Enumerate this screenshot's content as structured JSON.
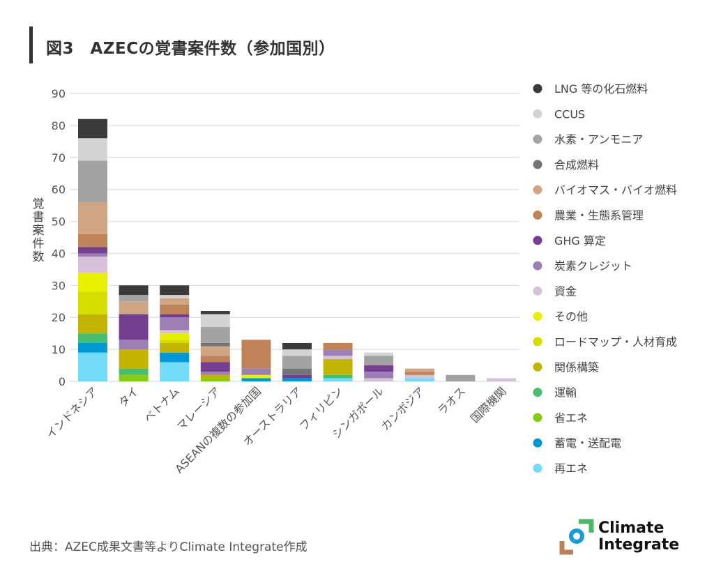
{
  "title": "図3　AZECの覚書案件数（参加国別）",
  "source": "出典：AZEC成果文書等よりClimate Integrate作成",
  "logo": {
    "line1": "Climate",
    "line2": "Integrate",
    "colors": [
      "#4cb96a",
      "#1a9bd7",
      "#b9825a"
    ]
  },
  "chart_data": {
    "type": "bar",
    "stacked": true,
    "title": "",
    "xlabel": "",
    "ylabel": "覚書案件数",
    "ylim": [
      0,
      90
    ],
    "yticks": [
      0,
      10,
      20,
      30,
      40,
      50,
      60,
      70,
      80,
      90
    ],
    "grid": true,
    "legend_position": "right",
    "categories": [
      "インドネシア",
      "タイ",
      "ベトナム",
      "マレーシア",
      "ASEANの複数の参加国",
      "オーストラリア",
      "フィリピン",
      "シンガポール",
      "カンボジア",
      "ラオス",
      "国際機関"
    ],
    "series": [
      {
        "name": "再エネ",
        "color": "#72dcf8",
        "values": [
          9,
          0,
          6,
          0,
          0,
          0,
          1,
          0,
          1,
          0,
          0
        ]
      },
      {
        "name": "蓄電・送配電",
        "color": "#0098d4",
        "values": [
          3,
          0,
          3,
          0,
          1,
          1,
          0,
          0,
          0,
          0,
          0
        ]
      },
      {
        "name": "省エネ",
        "color": "#84cc16",
        "values": [
          0,
          2,
          0,
          1,
          0,
          0,
          0,
          0,
          0,
          0,
          0
        ]
      },
      {
        "name": "運輸",
        "color": "#47bd6e",
        "values": [
          3,
          2,
          0,
          0,
          0,
          0,
          1,
          0,
          0,
          0,
          0
        ]
      },
      {
        "name": "関係構築",
        "color": "#c2b400",
        "values": [
          6,
          6,
          3,
          1,
          0,
          0,
          5,
          0,
          0,
          0,
          0
        ]
      },
      {
        "name": "ロードマップ・人材育成",
        "color": "#d4df00",
        "values": [
          7,
          0,
          1,
          0,
          0,
          0,
          0,
          0,
          0,
          0,
          0
        ]
      },
      {
        "name": "その他",
        "color": "#e8ef00",
        "values": [
          6,
          0,
          2,
          0,
          1,
          0,
          0,
          0,
          0,
          0,
          0
        ]
      },
      {
        "name": "資金",
        "color": "#d9c1dc",
        "values": [
          5,
          0,
          1,
          0,
          0,
          0,
          1,
          1,
          1,
          0,
          1
        ]
      },
      {
        "name": "炭素クレジット",
        "color": "#9c7fb5",
        "values": [
          1,
          3,
          4,
          1,
          2,
          0,
          2,
          2,
          0,
          0,
          0
        ]
      },
      {
        "name": "GHG 算定",
        "color": "#743f90",
        "values": [
          2,
          8,
          1,
          3,
          0,
          1,
          0,
          2,
          0,
          0,
          0
        ]
      },
      {
        "name": "農業・生態系管理",
        "color": "#c08257",
        "values": [
          4,
          0,
          3,
          2,
          9,
          0,
          2,
          0,
          1,
          0,
          0
        ]
      },
      {
        "name": "バイオマス・バイオ燃料",
        "color": "#cfa584",
        "values": [
          10,
          4,
          2,
          3,
          0,
          0,
          0,
          0,
          1,
          0,
          0
        ]
      },
      {
        "name": "合成燃料",
        "color": "#747474",
        "values": [
          0,
          0,
          0,
          1,
          0,
          2,
          0,
          0,
          0,
          0,
          0
        ]
      },
      {
        "name": "水素・アンモニア",
        "color": "#a3a3a3",
        "values": [
          13,
          2,
          0,
          5,
          0,
          4,
          0,
          3,
          0,
          2,
          0
        ]
      },
      {
        "name": "CCUS",
        "color": "#d3d3d3",
        "values": [
          7,
          0,
          1,
          4,
          0,
          2,
          0,
          1,
          0,
          0,
          0
        ]
      },
      {
        "name": "LNG 等の化石燃料",
        "color": "#3a3a3a",
        "values": [
          6,
          3,
          3,
          1,
          0,
          2,
          0,
          0,
          0,
          0,
          0
        ]
      }
    ]
  }
}
